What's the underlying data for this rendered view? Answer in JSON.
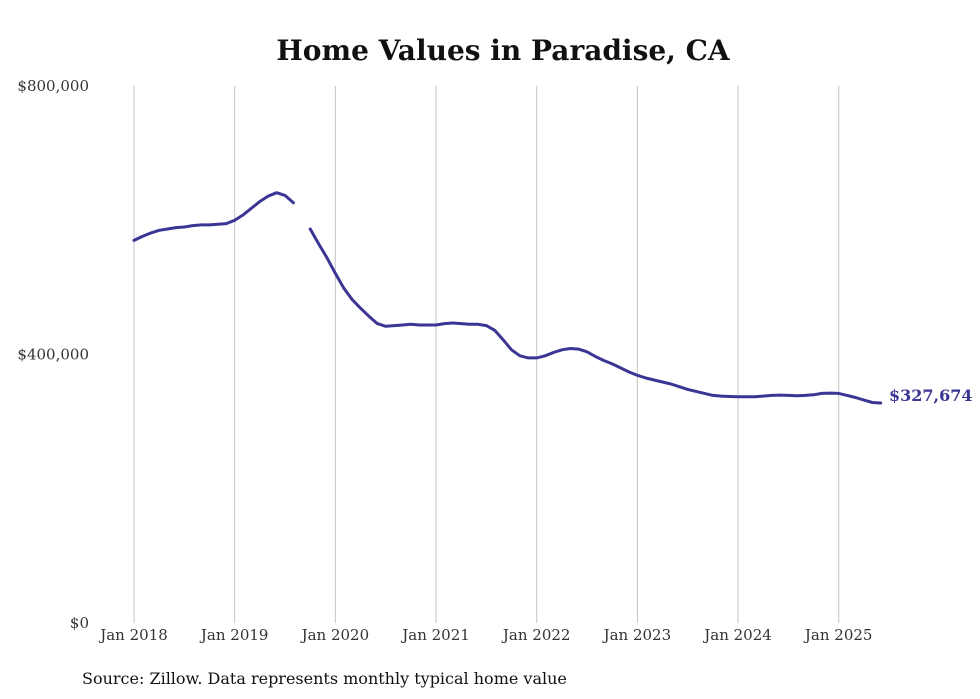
{
  "chart_data": {
    "type": "line",
    "title": "Home Values in Paradise, CA",
    "source": "Source: Zillow. Data represents monthly typical home value",
    "ylim": [
      0,
      800000
    ],
    "yticks": [
      {
        "value": 0,
        "label": "$0"
      },
      {
        "value": 400000,
        "label": "$400,000"
      },
      {
        "value": 800000,
        "label": "$800,000"
      }
    ],
    "xlim": [
      "2018-01",
      "2025-12"
    ],
    "xticks": [
      {
        "x": "2018-01",
        "label": "Jan 2018"
      },
      {
        "x": "2019-01",
        "label": "Jan 2019"
      },
      {
        "x": "2020-01",
        "label": "Jan 2020"
      },
      {
        "x": "2021-01",
        "label": "Jan 2021"
      },
      {
        "x": "2022-01",
        "label": "Jan 2022"
      },
      {
        "x": "2023-01",
        "label": "Jan 2023"
      },
      {
        "x": "2024-01",
        "label": "Jan 2024"
      },
      {
        "x": "2025-01",
        "label": "Jan 2025"
      }
    ],
    "grid": {
      "vertical": true,
      "horizontal": false
    },
    "line_color": "#3b3594",
    "end_label": "$327,674",
    "series": [
      {
        "segments": [
          [
            {
              "x": "2018-01",
              "y": 570000
            },
            {
              "x": "2018-02",
              "y": 576000
            },
            {
              "x": "2018-03",
              "y": 581000
            },
            {
              "x": "2018-04",
              "y": 585000
            },
            {
              "x": "2018-05",
              "y": 587000
            },
            {
              "x": "2018-06",
              "y": 589000
            },
            {
              "x": "2018-07",
              "y": 590000
            },
            {
              "x": "2018-08",
              "y": 592000
            },
            {
              "x": "2018-09",
              "y": 593000
            },
            {
              "x": "2018-10",
              "y": 593000
            },
            {
              "x": "2018-11",
              "y": 594000
            },
            {
              "x": "2018-12",
              "y": 595000
            },
            {
              "x": "2019-01",
              "y": 600000
            },
            {
              "x": "2019-02",
              "y": 608000
            },
            {
              "x": "2019-03",
              "y": 618000
            },
            {
              "x": "2019-04",
              "y": 628000
            },
            {
              "x": "2019-05",
              "y": 636000
            },
            {
              "x": "2019-06",
              "y": 641000
            },
            {
              "x": "2019-07",
              "y": 637000
            },
            {
              "x": "2019-08",
              "y": 626000
            }
          ],
          [
            {
              "x": "2019-10",
              "y": 587000
            },
            {
              "x": "2019-11",
              "y": 565000
            },
            {
              "x": "2019-12",
              "y": 544000
            },
            {
              "x": "2020-01",
              "y": 521000
            },
            {
              "x": "2020-02",
              "y": 499000
            },
            {
              "x": "2020-03",
              "y": 482000
            },
            {
              "x": "2020-04",
              "y": 469000
            },
            {
              "x": "2020-05",
              "y": 457000
            },
            {
              "x": "2020-06",
              "y": 446000
            },
            {
              "x": "2020-07",
              "y": 442000
            },
            {
              "x": "2020-08",
              "y": 443000
            },
            {
              "x": "2020-09",
              "y": 444000
            },
            {
              "x": "2020-10",
              "y": 445000
            },
            {
              "x": "2020-11",
              "y": 444000
            },
            {
              "x": "2020-12",
              "y": 444000
            },
            {
              "x": "2021-01",
              "y": 444000
            },
            {
              "x": "2021-02",
              "y": 446000
            },
            {
              "x": "2021-03",
              "y": 447000
            },
            {
              "x": "2021-04",
              "y": 446000
            },
            {
              "x": "2021-05",
              "y": 445000
            },
            {
              "x": "2021-06",
              "y": 445000
            },
            {
              "x": "2021-07",
              "y": 443000
            },
            {
              "x": "2021-08",
              "y": 436000
            },
            {
              "x": "2021-09",
              "y": 422000
            },
            {
              "x": "2021-10",
              "y": 407000
            },
            {
              "x": "2021-11",
              "y": 398000
            },
            {
              "x": "2021-12",
              "y": 395000
            },
            {
              "x": "2022-01",
              "y": 395000
            },
            {
              "x": "2022-02",
              "y": 398000
            },
            {
              "x": "2022-03",
              "y": 403000
            },
            {
              "x": "2022-04",
              "y": 407000
            },
            {
              "x": "2022-05",
              "y": 409000
            },
            {
              "x": "2022-06",
              "y": 408000
            },
            {
              "x": "2022-07",
              "y": 404000
            },
            {
              "x": "2022-08",
              "y": 397000
            },
            {
              "x": "2022-09",
              "y": 391000
            },
            {
              "x": "2022-10",
              "y": 386000
            },
            {
              "x": "2022-11",
              "y": 380000
            },
            {
              "x": "2022-12",
              "y": 374000
            },
            {
              "x": "2023-01",
              "y": 369000
            },
            {
              "x": "2023-02",
              "y": 365000
            },
            {
              "x": "2023-03",
              "y": 362000
            },
            {
              "x": "2023-04",
              "y": 359000
            },
            {
              "x": "2023-05",
              "y": 356000
            },
            {
              "x": "2023-06",
              "y": 352000
            },
            {
              "x": "2023-07",
              "y": 348000
            },
            {
              "x": "2023-08",
              "y": 345000
            },
            {
              "x": "2023-09",
              "y": 342000
            },
            {
              "x": "2023-10",
              "y": 339000
            },
            {
              "x": "2023-11",
              "y": 338000
            },
            {
              "x": "2023-12",
              "y": 337500
            },
            {
              "x": "2024-01",
              "y": 337000
            },
            {
              "x": "2024-02",
              "y": 337000
            },
            {
              "x": "2024-03",
              "y": 337000
            },
            {
              "x": "2024-04",
              "y": 338000
            },
            {
              "x": "2024-05",
              "y": 339000
            },
            {
              "x": "2024-06",
              "y": 339500
            },
            {
              "x": "2024-07",
              "y": 339000
            },
            {
              "x": "2024-08",
              "y": 338500
            },
            {
              "x": "2024-09",
              "y": 339000
            },
            {
              "x": "2024-10",
              "y": 340000
            },
            {
              "x": "2024-11",
              "y": 342000
            },
            {
              "x": "2024-12",
              "y": 342500
            },
            {
              "x": "2025-01",
              "y": 342000
            },
            {
              "x": "2025-02",
              "y": 339000
            },
            {
              "x": "2025-03",
              "y": 336000
            },
            {
              "x": "2025-04",
              "y": 332000
            },
            {
              "x": "2025-05",
              "y": 328500
            },
            {
              "x": "2025-06",
              "y": 327674
            }
          ]
        ]
      }
    ]
  }
}
